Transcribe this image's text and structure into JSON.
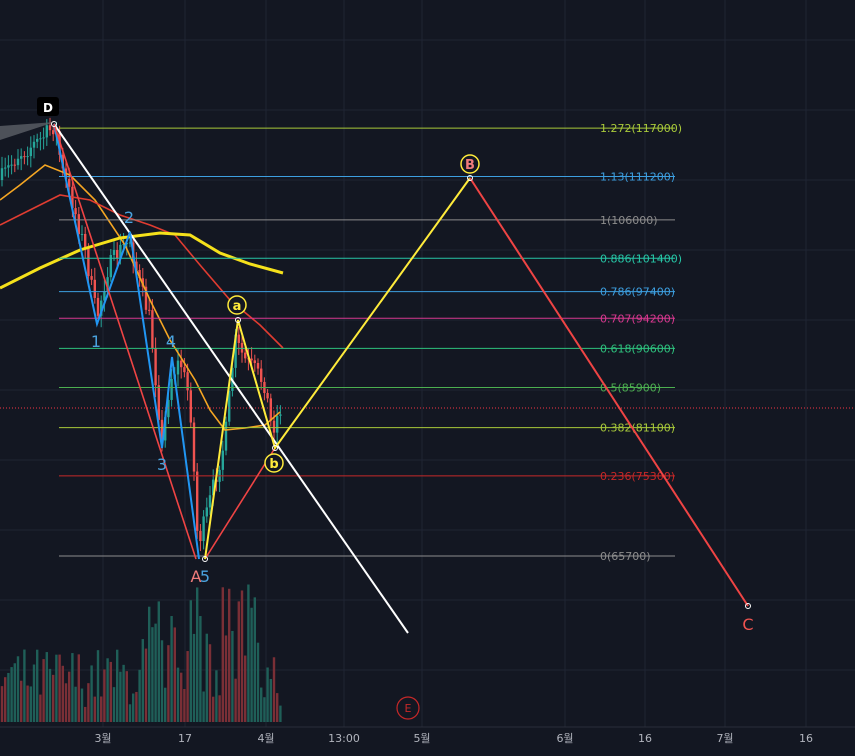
{
  "colors": {
    "background": "#131722",
    "grid": "#1f2433",
    "axis_text": "#b2b5be",
    "bull_candle": "#26a69a",
    "bear_candle": "#ef5350",
    "vol_bull": "#1f5f58",
    "vol_bear": "#7a2f36",
    "price_line": "#f23645",
    "ma_fast": "#f5a623",
    "ma_mid": "#e03c31",
    "ma_slow": "#f5e11b",
    "white_trend": "#ffffff",
    "wave_blue": "#2196f3",
    "wave_red": "#ef4444",
    "wave_yellow": "#ffeb3b"
  },
  "chart_data": {
    "type": "candlestick",
    "x_axis_labels": [
      "3월",
      "17",
      "4월",
      "13:00",
      "5월",
      "6월",
      "16",
      "7월",
      "16"
    ],
    "fib_levels": [
      {
        "ratio": "1.272",
        "price": 117000,
        "label": "1.272(117000)",
        "color": "#a8c93a"
      },
      {
        "ratio": "1.13",
        "price": 111200,
        "label": "1.13(111200)",
        "color": "#3d9fe0"
      },
      {
        "ratio": "1",
        "price": 106000,
        "label": "1(106000)",
        "color": "#8d8d8d"
      },
      {
        "ratio": "0.886",
        "price": 101400,
        "label": "0.886(101400)",
        "color": "#26c6a6"
      },
      {
        "ratio": "0.786",
        "price": 97400,
        "label": "0.786(97400)",
        "color": "#3d9fe0"
      },
      {
        "ratio": "0.707",
        "price": 94200,
        "label": "0.707(94200)",
        "color": "#d8388f"
      },
      {
        "ratio": "0.618",
        "price": 90600,
        "label": "0.618(90600)",
        "color": "#2ec27e"
      },
      {
        "ratio": "0.5",
        "price": 85900,
        "label": "0.5(85900)",
        "color": "#4caf50"
      },
      {
        "ratio": "0.382",
        "price": 81100,
        "label": "0.382(81100)",
        "color": "#a8c93a"
      },
      {
        "ratio": "0.236",
        "price": 75300,
        "label": "0.236(75300)",
        "color": "#c62828"
      },
      {
        "ratio": "0",
        "price": 65700,
        "label": "0(65700)",
        "color": "#8d8d8d"
      }
    ],
    "wave_labels": [
      {
        "text": "D",
        "style": "badge"
      },
      {
        "text": "1",
        "color": "#4aa3df"
      },
      {
        "text": "2",
        "color": "#4aa3df"
      },
      {
        "text": "3",
        "color": "#4aa3df"
      },
      {
        "text": "4",
        "color": "#4aa3df"
      },
      {
        "text": "A",
        "color": "#ef7c7c"
      },
      {
        "text": "5",
        "color": "#4aa3df"
      },
      {
        "text": "a",
        "style": "circle"
      },
      {
        "text": "b",
        "style": "circle"
      },
      {
        "text": "B",
        "style": "circle-red"
      },
      {
        "text": "C",
        "color": "#ef5350"
      },
      {
        "text": "E",
        "style": "circle-outline"
      }
    ]
  }
}
